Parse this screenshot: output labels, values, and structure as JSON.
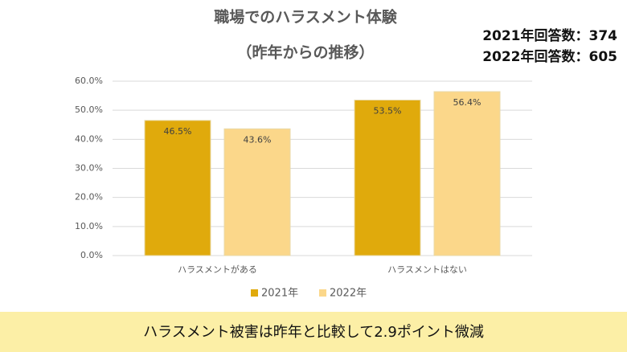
{
  "chart_data": {
    "type": "bar",
    "title": "職場でのハラスメント体験",
    "subtitle": "（昨年からの推移）",
    "annotations": [
      "2021年回答数：374",
      "2022年回答数：605"
    ],
    "categories": [
      "ハラスメントがある",
      "ハラスメントはない"
    ],
    "series": [
      {
        "name": "2021年",
        "color": "#e0aa0c",
        "values": [
          46.5,
          53.5
        ],
        "value_labels": [
          "46.5%",
          "53.5%"
        ]
      },
      {
        "name": "2022年",
        "color": "#fbd78a",
        "values": [
          43.6,
          56.4
        ],
        "value_labels": [
          "43.6%",
          "56.4%"
        ]
      }
    ],
    "ylim": [
      0,
      60
    ],
    "yticks": [
      {
        "value": 0,
        "label": "0.0%"
      },
      {
        "value": 10,
        "label": "10.0%"
      },
      {
        "value": 20,
        "label": "20.0%"
      },
      {
        "value": 30,
        "label": "30.0%"
      },
      {
        "value": 40,
        "label": "40.0%"
      },
      {
        "value": 50,
        "label": "50.0%"
      },
      {
        "value": 60,
        "label": "60.0%"
      }
    ],
    "grid": true,
    "footer": "ハラスメント被害は昨年と比較して2.9ポイント微減"
  }
}
